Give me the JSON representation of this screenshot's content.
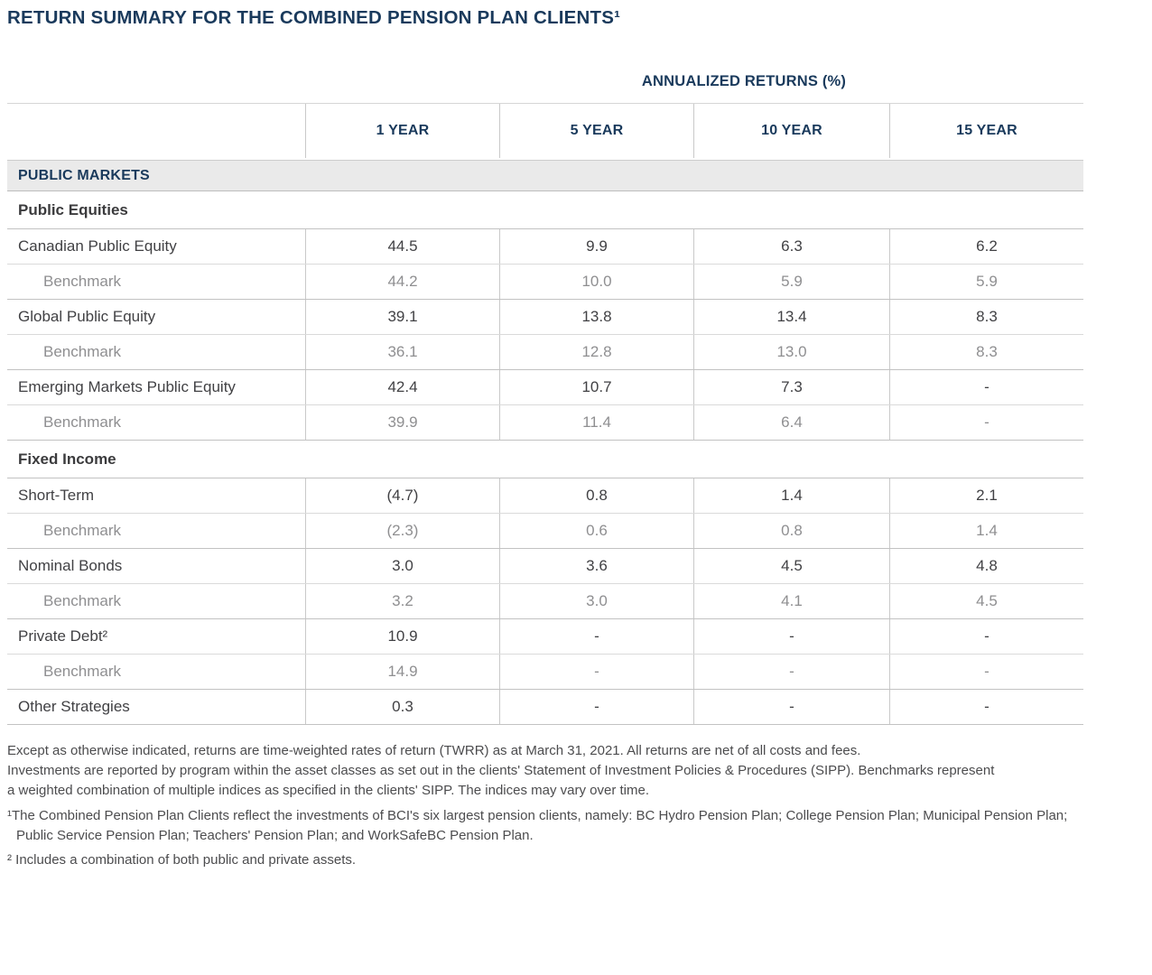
{
  "title": "RETURN SUMMARY FOR THE COMBINED PENSION PLAN CLIENTS¹",
  "table": {
    "group_header": "ANNUALIZED RETURNS (%)",
    "columns": [
      "1 YEAR",
      "5 YEAR",
      "10 YEAR",
      "15 YEAR"
    ],
    "section": "PUBLIC MARKETS",
    "groups": [
      {
        "name": "Public Equities",
        "rows": [
          {
            "label": "Canadian Public Equity",
            "type": "main",
            "values": [
              "44.5",
              "9.9",
              "6.3",
              "6.2"
            ]
          },
          {
            "label": "Benchmark",
            "type": "benchmark",
            "values": [
              "44.2",
              "10.0",
              "5.9",
              "5.9"
            ]
          },
          {
            "label": "Global Public Equity",
            "type": "main",
            "values": [
              "39.1",
              "13.8",
              "13.4",
              "8.3"
            ]
          },
          {
            "label": "Benchmark",
            "type": "benchmark",
            "values": [
              "36.1",
              "12.8",
              "13.0",
              "8.3"
            ]
          },
          {
            "label": "Emerging Markets Public Equity",
            "type": "main",
            "values": [
              "42.4",
              "10.7",
              "7.3",
              "-"
            ]
          },
          {
            "label": "Benchmark",
            "type": "benchmark",
            "values": [
              "39.9",
              "11.4",
              "6.4",
              "-"
            ]
          }
        ]
      },
      {
        "name": "Fixed Income",
        "rows": [
          {
            "label": "Short-Term",
            "type": "main",
            "values": [
              "(4.7)",
              "0.8",
              "1.4",
              "2.1"
            ]
          },
          {
            "label": "Benchmark",
            "type": "benchmark",
            "values": [
              "(2.3)",
              "0.6",
              "0.8",
              "1.4"
            ]
          },
          {
            "label": "Nominal Bonds",
            "type": "main",
            "values": [
              "3.0",
              "3.6",
              "4.5",
              "4.8"
            ]
          },
          {
            "label": "Benchmark",
            "type": "benchmark",
            "values": [
              "3.2",
              "3.0",
              "4.1",
              "4.5"
            ]
          },
          {
            "label": "Private Debt²",
            "type": "main",
            "values": [
              "10.9",
              "-",
              "-",
              "-"
            ]
          },
          {
            "label": "Benchmark",
            "type": "benchmark",
            "values": [
              "14.9",
              "-",
              "-",
              "-"
            ]
          },
          {
            "label": "Other Strategies",
            "type": "main",
            "values": [
              "0.3",
              "-",
              "-",
              "-"
            ]
          }
        ]
      }
    ]
  },
  "footnotes": {
    "general_lines": [
      "Except as otherwise indicated, returns are time-weighted rates of return (TWRR) as at March 31, 2021. All returns are net of all costs and fees.",
      "Investments are reported by program within the asset classes as set out in the clients' Statement of Investment Policies & Procedures (SIPP). Benchmarks represent",
      "a weighted combination of multiple indices as specified in the clients' SIPP. The indices may vary over time."
    ],
    "footnote1": {
      "marker": "¹",
      "line1": "The Combined Pension Plan Clients reflect the investments of BCI's six largest pension clients, namely: BC Hydro Pension Plan; College Pension Plan; Municipal Pension Plan;",
      "line2": "Public Service Pension Plan; Teachers' Pension Plan; and WorkSafeBC Pension Plan."
    },
    "footnote2": {
      "marker": "²",
      "text": "Includes a combination of both public and private assets."
    }
  },
  "colors": {
    "navy": "#1a3a5c",
    "body_text": "#414144",
    "benchmark_text": "#8f8f91",
    "band_background": "#eaeaea",
    "border": "#c9c9c9"
  }
}
